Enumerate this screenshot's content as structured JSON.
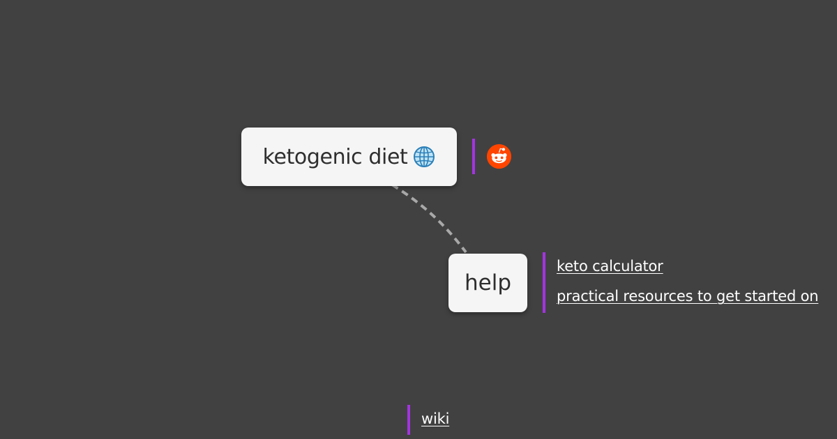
{
  "mindmap": {
    "root": {
      "label": "ketogenic diet",
      "icon": "globe-icon",
      "attachment_icon": "reddit-icon"
    },
    "children": [
      {
        "label": "help",
        "links": [
          "keto calculator",
          "practical resources to get started on"
        ]
      }
    ],
    "extra_links": [
      "wiki"
    ]
  },
  "colors": {
    "background": "#414141",
    "node_fill": "#f5f5f5",
    "node_text": "#2e2e2e",
    "accent_bar": "#a334e0",
    "edge": "#a9a9a9",
    "link_text": "#ffffff",
    "reddit": "#ff4500"
  }
}
